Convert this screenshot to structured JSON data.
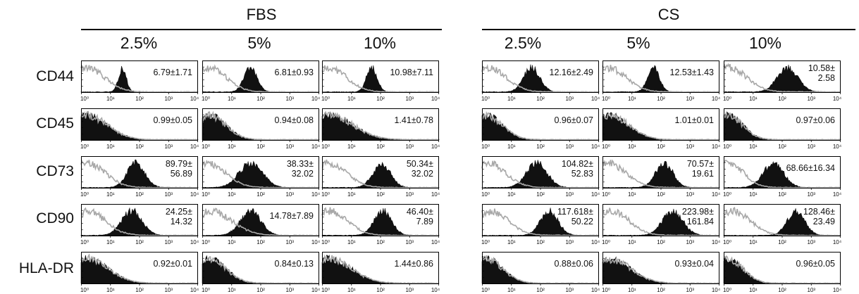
{
  "groups": [
    {
      "label": "FBS",
      "concentrations": [
        "2.5%",
        "5%",
        "10%"
      ]
    },
    {
      "label": "CS",
      "concentrations": [
        "2.5%",
        "5%",
        "10%"
      ]
    }
  ],
  "markers": [
    "CD44",
    "CD45",
    "CD73",
    "CD90",
    "HLA-DR"
  ],
  "colors": {
    "isotype": "#a8a8a8",
    "stained": "#111111",
    "frame": "#000000"
  },
  "chart_data": {
    "type": "histogram-grid",
    "x_scale": "log",
    "xlim": [
      1,
      10000
    ],
    "x_tick_labels": [
      "10⁰",
      "10¹",
      "10²",
      "10³",
      "10⁴"
    ],
    "legend": "none",
    "grid": false,
    "panels": [
      {
        "marker": "CD44",
        "group": "FBS",
        "conc": "2.5%",
        "mfi": [
          "6.79±1.71"
        ],
        "iso": [
          1.6,
          0.6
        ],
        "stain": [
          26,
          0.13
        ]
      },
      {
        "marker": "CD44",
        "group": "FBS",
        "conc": "5%",
        "mfi": [
          "6.81±0.93"
        ],
        "iso": [
          1.6,
          0.6
        ],
        "stain": [
          45,
          0.22
        ]
      },
      {
        "marker": "CD44",
        "group": "FBS",
        "conc": "10%",
        "mfi": [
          "10.98±7.11"
        ],
        "iso": [
          1.7,
          0.6
        ],
        "stain": [
          50,
          0.18
        ]
      },
      {
        "marker": "CD44",
        "group": "CS",
        "conc": "2.5%",
        "mfi": [
          "12.16±2.49"
        ],
        "iso": [
          1.6,
          0.6
        ],
        "stain": [
          50,
          0.28
        ]
      },
      {
        "marker": "CD44",
        "group": "CS",
        "conc": "5%",
        "mfi": [
          "12.53±1.43"
        ],
        "iso": [
          1.6,
          0.6
        ],
        "stain": [
          55,
          0.2
        ]
      },
      {
        "marker": "CD44",
        "group": "CS",
        "conc": "10%",
        "mfi": [
          "10.58±",
          "2.58"
        ],
        "iso": [
          1.5,
          0.6
        ],
        "stain": [
          150,
          0.35
        ]
      },
      {
        "marker": "CD45",
        "group": "FBS",
        "conc": "2.5%",
        "mfi": [
          "0.99±0.05"
        ],
        "iso": [
          1.6,
          0.7
        ],
        "stain": [
          1.6,
          0.7
        ]
      },
      {
        "marker": "CD45",
        "group": "FBS",
        "conc": "5%",
        "mfi": [
          "0.94±0.08"
        ],
        "iso": [
          1.8,
          0.55
        ],
        "stain": [
          1.8,
          0.55
        ]
      },
      {
        "marker": "CD45",
        "group": "FBS",
        "conc": "10%",
        "mfi": [
          "1.41±0.78"
        ],
        "iso": [
          1.8,
          0.8
        ],
        "stain": [
          1.8,
          0.8
        ]
      },
      {
        "marker": "CD45",
        "group": "CS",
        "conc": "2.5%",
        "mfi": [
          "0.96±0.07"
        ],
        "iso": [
          1.4,
          0.55
        ],
        "stain": [
          1.4,
          0.55
        ]
      },
      {
        "marker": "CD45",
        "group": "CS",
        "conc": "5%",
        "mfi": [
          "1.01±0.01"
        ],
        "iso": [
          1.8,
          0.65
        ],
        "stain": [
          1.8,
          0.65
        ]
      },
      {
        "marker": "CD45",
        "group": "CS",
        "conc": "10%",
        "mfi": [
          "0.97±0.06"
        ],
        "iso": [
          1.4,
          0.5
        ],
        "stain": [
          1.4,
          0.5
        ]
      },
      {
        "marker": "CD73",
        "group": "FBS",
        "conc": "2.5%",
        "mfi": [
          "89.79±",
          "56.89"
        ],
        "iso": [
          1.7,
          0.6
        ],
        "stain": [
          75,
          0.3
        ]
      },
      {
        "marker": "CD73",
        "group": "FBS",
        "conc": "5%",
        "mfi": [
          "38.33±",
          "32.02"
        ],
        "iso": [
          1.6,
          0.6
        ],
        "stain": [
          45,
          0.4
        ]
      },
      {
        "marker": "CD73",
        "group": "FBS",
        "conc": "10%",
        "mfi": [
          "50.34±",
          "32.02"
        ],
        "iso": [
          1.7,
          0.6
        ],
        "stain": [
          110,
          0.3
        ]
      },
      {
        "marker": "CD73",
        "group": "CS",
        "conc": "2.5%",
        "mfi": [
          "104.82±",
          "52.83"
        ],
        "iso": [
          1.6,
          0.6
        ],
        "stain": [
          75,
          0.35
        ]
      },
      {
        "marker": "CD73",
        "group": "CS",
        "conc": "5%",
        "mfi": [
          "70.57±",
          "19.61"
        ],
        "iso": [
          1.6,
          0.6
        ],
        "stain": [
          130,
          0.3
        ]
      },
      {
        "marker": "CD73",
        "group": "CS",
        "conc": "10%",
        "mfi": [
          "68.66±16.34"
        ],
        "iso": [
          1.5,
          0.5
        ],
        "stain": [
          50,
          0.35
        ]
      },
      {
        "marker": "CD90",
        "group": "FBS",
        "conc": "2.5%",
        "mfi": [
          "24.25±",
          "14.32"
        ],
        "iso": [
          1.7,
          0.6
        ],
        "stain": [
          55,
          0.35
        ]
      },
      {
        "marker": "CD90",
        "group": "FBS",
        "conc": "5%",
        "mfi": [
          "14.78±7.89"
        ],
        "iso": [
          2.0,
          0.7
        ],
        "stain": [
          45,
          0.35
        ]
      },
      {
        "marker": "CD90",
        "group": "FBS",
        "conc": "10%",
        "mfi": [
          "46.40±",
          "7.89"
        ],
        "iso": [
          1.8,
          0.6
        ],
        "stain": [
          120,
          0.3
        ]
      },
      {
        "marker": "CD90",
        "group": "CS",
        "conc": "2.5%",
        "mfi": [
          "117.618±",
          "50.22"
        ],
        "iso": [
          2.0,
          0.6
        ],
        "stain": [
          200,
          0.3
        ]
      },
      {
        "marker": "CD90",
        "group": "CS",
        "conc": "5%",
        "mfi": [
          "223.98±",
          "161.84"
        ],
        "iso": [
          2.0,
          0.6
        ],
        "stain": [
          250,
          0.35
        ]
      },
      {
        "marker": "CD90",
        "group": "CS",
        "conc": "10%",
        "mfi": [
          "128.46±",
          "23.49"
        ],
        "iso": [
          2.0,
          0.6
        ],
        "stain": [
          300,
          0.3
        ]
      },
      {
        "marker": "HLA-DR",
        "group": "FBS",
        "conc": "2.5%",
        "mfi": [
          "0.92±0.01"
        ],
        "iso": [
          1.7,
          0.7
        ],
        "stain": [
          1.7,
          0.7
        ]
      },
      {
        "marker": "HLA-DR",
        "group": "FBS",
        "conc": "5%",
        "mfi": [
          "0.84±0.13"
        ],
        "iso": [
          1.8,
          0.55
        ],
        "stain": [
          1.8,
          0.55
        ]
      },
      {
        "marker": "HLA-DR",
        "group": "FBS",
        "conc": "10%",
        "mfi": [
          "1.44±0.86"
        ],
        "iso": [
          1.8,
          0.75
        ],
        "stain": [
          1.8,
          0.75
        ]
      },
      {
        "marker": "HLA-DR",
        "group": "CS",
        "conc": "2.5%",
        "mfi": [
          "0.88±0.06"
        ],
        "iso": [
          1.4,
          0.55
        ],
        "stain": [
          1.4,
          0.55
        ]
      },
      {
        "marker": "HLA-DR",
        "group": "CS",
        "conc": "5%",
        "mfi": [
          "0.93±0.04"
        ],
        "iso": [
          1.8,
          0.7
        ],
        "stain": [
          1.8,
          0.7
        ]
      },
      {
        "marker": "HLA-DR",
        "group": "CS",
        "conc": "10%",
        "mfi": [
          "0.96±0.05"
        ],
        "iso": [
          1.4,
          0.5
        ],
        "stain": [
          1.4,
          0.5
        ]
      }
    ]
  }
}
